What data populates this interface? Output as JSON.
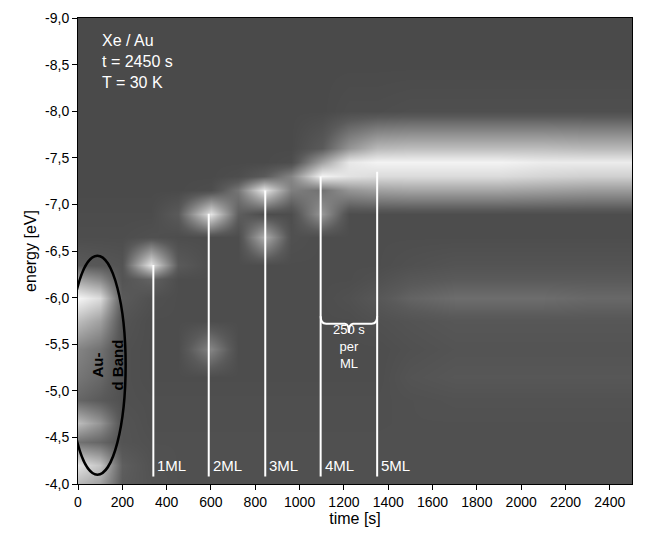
{
  "chart_data": {
    "type": "heatmap",
    "x_label": "time [s]",
    "y_label": "energy [eV]",
    "annotations": [
      "Xe / Au",
      "t = 2450 s",
      "T = 30 K"
    ],
    "x": [
      0,
      100,
      200,
      330,
      450,
      600,
      720,
      840,
      960,
      1100,
      1225,
      1350,
      1500,
      1700,
      1900,
      2100,
      2300,
      2500
    ],
    "y": [
      -4.0,
      -4.2,
      -4.45,
      -4.65,
      -4.9,
      -5.15,
      -5.45,
      -5.75,
      -6.0,
      -6.2,
      -6.35,
      -6.65,
      -6.9,
      -7.15,
      -7.3,
      -7.45,
      -7.6,
      -8.0,
      -8.5,
      -9.0
    ],
    "z": [
      [
        70,
        60,
        30,
        26,
        24,
        24,
        24,
        24,
        24,
        24,
        24,
        24,
        24,
        24,
        24,
        24,
        24,
        24
      ],
      [
        88,
        75,
        32,
        25,
        24,
        24,
        24,
        24,
        24,
        24,
        24,
        24,
        24,
        24,
        24,
        24,
        24,
        24
      ],
      [
        40,
        35,
        26,
        24,
        24,
        24,
        24,
        24,
        24,
        24,
        24,
        24,
        24,
        24,
        24,
        24,
        24,
        24
      ],
      [
        72,
        55,
        26,
        23,
        23,
        23,
        23,
        23,
        23,
        23,
        23,
        23,
        24,
        24,
        24,
        24,
        24,
        24
      ],
      [
        35,
        30,
        24,
        23,
        23,
        23,
        23,
        23,
        23,
        23,
        23,
        23,
        24,
        25,
        25,
        25,
        25,
        25
      ],
      [
        42,
        36,
        24,
        22,
        22,
        22,
        22,
        22,
        22,
        22,
        22,
        22,
        26,
        28,
        28,
        28,
        28,
        28
      ],
      [
        48,
        40,
        24,
        22,
        22,
        48,
        22,
        22,
        22,
        22,
        22,
        22,
        24,
        26,
        26,
        26,
        26,
        26
      ],
      [
        72,
        60,
        26,
        22,
        22,
        22,
        22,
        22,
        22,
        22,
        22,
        24,
        26,
        28,
        28,
        28,
        28,
        28
      ],
      [
        96,
        85,
        30,
        24,
        22,
        22,
        22,
        22,
        22,
        22,
        24,
        28,
        34,
        38,
        38,
        38,
        36,
        36
      ],
      [
        60,
        50,
        26,
        34,
        22,
        22,
        22,
        22,
        22,
        22,
        22,
        24,
        28,
        30,
        30,
        30,
        30,
        30
      ],
      [
        30,
        28,
        26,
        88,
        30,
        22,
        22,
        22,
        22,
        22,
        22,
        22,
        24,
        26,
        26,
        26,
        26,
        26
      ],
      [
        22,
        22,
        22,
        24,
        22,
        22,
        22,
        66,
        24,
        22,
        22,
        22,
        22,
        22,
        22,
        22,
        22,
        22
      ],
      [
        21,
        21,
        21,
        21,
        30,
        88,
        32,
        22,
        22,
        56,
        22,
        22,
        22,
        22,
        22,
        22,
        22,
        22
      ],
      [
        20,
        20,
        20,
        20,
        20,
        22,
        42,
        90,
        46,
        40,
        55,
        60,
        62,
        62,
        62,
        60,
        58,
        58
      ],
      [
        20,
        20,
        20,
        20,
        20,
        20,
        22,
        30,
        48,
        95,
        88,
        85,
        85,
        85,
        85,
        82,
        80,
        80
      ],
      [
        20,
        20,
        20,
        20,
        20,
        20,
        20,
        20,
        22,
        60,
        90,
        95,
        95,
        95,
        95,
        92,
        92,
        92
      ],
      [
        20,
        20,
        20,
        20,
        20,
        20,
        20,
        20,
        20,
        30,
        55,
        70,
        72,
        72,
        72,
        72,
        70,
        70
      ],
      [
        20,
        20,
        20,
        20,
        20,
        20,
        20,
        20,
        20,
        20,
        22,
        22,
        23,
        23,
        23,
        23,
        23,
        23
      ],
      [
        20,
        20,
        20,
        20,
        20,
        20,
        20,
        20,
        20,
        20,
        20,
        20,
        20,
        20,
        20,
        20,
        20,
        20
      ],
      [
        20,
        20,
        20,
        20,
        20,
        20,
        20,
        20,
        20,
        20,
        20,
        20,
        20,
        20,
        20,
        20,
        20,
        20
      ]
    ],
    "zlim": [
      0,
      100
    ],
    "xlim": [
      0,
      2500
    ],
    "xticks": [
      0,
      200,
      400,
      600,
      800,
      1000,
      1200,
      1400,
      1600,
      1800,
      2000,
      2200,
      2400
    ],
    "ylim": [
      -4.0,
      -9.0
    ],
    "yticks": [
      {
        "value": -4.0,
        "label": "-4,0"
      },
      {
        "value": -4.5,
        "label": "-4,5"
      },
      {
        "value": -5.0,
        "label": "-5,0"
      },
      {
        "value": -5.5,
        "label": "-5,5"
      },
      {
        "value": -6.0,
        "label": "-6,0"
      },
      {
        "value": -6.5,
        "label": "-6,5"
      },
      {
        "value": -7.0,
        "label": "-7,0"
      },
      {
        "value": -7.5,
        "label": "-7,5"
      },
      {
        "value": -8.0,
        "label": "-8,0"
      },
      {
        "value": -8.5,
        "label": "-8,5"
      },
      {
        "value": -9.0,
        "label": "-9,0"
      }
    ],
    "region": {
      "label": [
        "Au-",
        "d Band"
      ],
      "time": [
        -40,
        215
      ],
      "energy": [
        -4.1,
        -6.45
      ]
    },
    "monolayers": [
      {
        "label": "1ML",
        "time": 340,
        "energy": -6.35
      },
      {
        "label": "2ML",
        "time": 590,
        "energy": -6.9
      },
      {
        "label": "3ML",
        "time": 845,
        "energy": -7.15
      },
      {
        "label": "4ML",
        "time": 1095,
        "energy": -7.3
      },
      {
        "label": "5ML",
        "time": 1350,
        "energy": -7.35
      }
    ],
    "period": {
      "label": [
        "250 s",
        "per",
        "ML"
      ],
      "time": [
        1095,
        1350
      ]
    },
    "grid": false
  }
}
